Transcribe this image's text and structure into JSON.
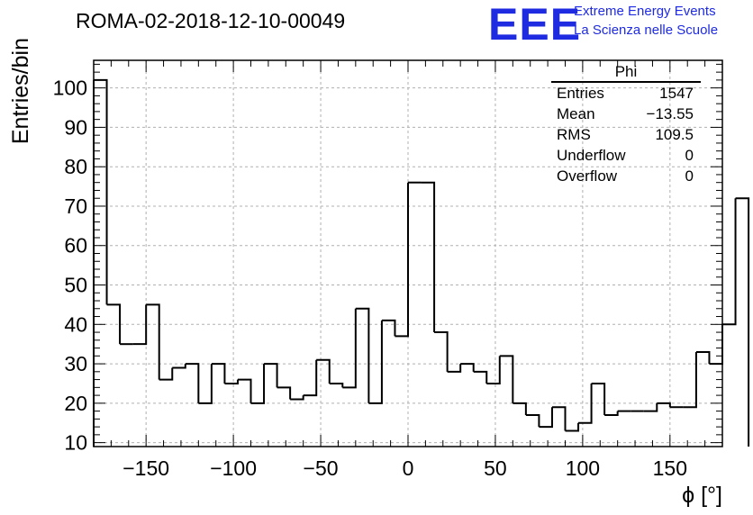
{
  "header": {
    "title": "ROMA-02-2018-12-10-00049",
    "logo_text": "EEE",
    "logo_line1": "Extreme Energy Events",
    "logo_line2": "La Scienza nelle Scuole",
    "logo_color": "#1f2be0"
  },
  "stats_box": {
    "title": "Phi",
    "rows": [
      {
        "label": "Entries",
        "value": "1547"
      },
      {
        "label": "Mean",
        "value": "−13.55"
      },
      {
        "label": "RMS",
        "value": "109.5"
      },
      {
        "label": "Underflow",
        "value": "0"
      },
      {
        "label": "Overflow",
        "value": "0"
      }
    ]
  },
  "chart_data": {
    "type": "bar",
    "style": "histogram-step",
    "xlabel": "ϕ [°]",
    "ylabel": "Entries/bin",
    "xlim": [
      -180,
      180
    ],
    "ylim": [
      9,
      107
    ],
    "xticks": [
      -150,
      -100,
      -50,
      0,
      50,
      100,
      150
    ],
    "xtick_labels": [
      "−150",
      "−100",
      "−50",
      "0",
      "50",
      "100",
      "150"
    ],
    "yticks": [
      10,
      20,
      30,
      40,
      50,
      60,
      70,
      80,
      90,
      100
    ],
    "grid": true,
    "bin_width": 7.5,
    "bin_edges_start": -180,
    "values": [
      102,
      45,
      35,
      35,
      45,
      26,
      29,
      30,
      20,
      30,
      25,
      26,
      20,
      30,
      24,
      21,
      22,
      31,
      25,
      24,
      44,
      20,
      41,
      37,
      76,
      76,
      38,
      28,
      30,
      28,
      25,
      32,
      20,
      17,
      14,
      19,
      13,
      15,
      25,
      17,
      18,
      18,
      18,
      20,
      19,
      19,
      33,
      30,
      40,
      72
    ],
    "line_color": "#000000"
  }
}
